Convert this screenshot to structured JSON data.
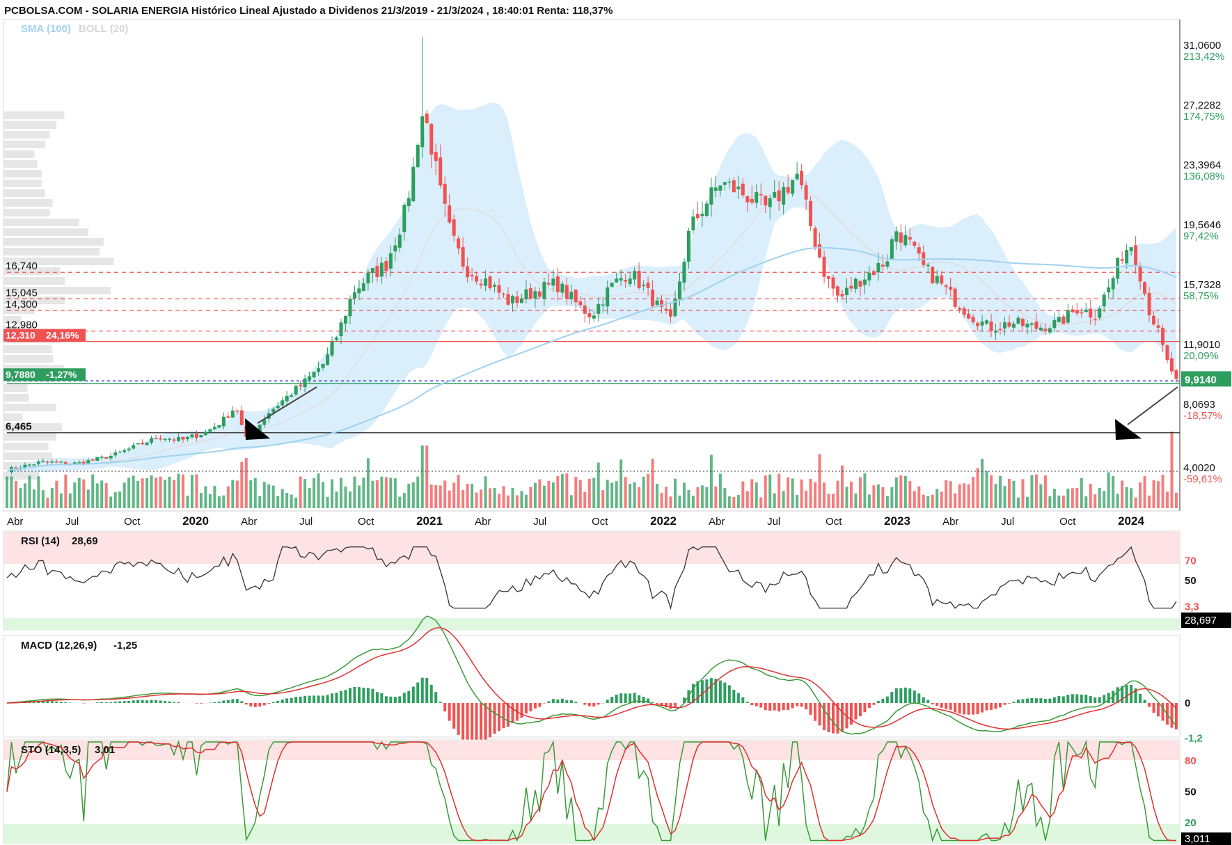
{
  "header": {
    "title": "PCBOLSA.COM - SOLARIA ENERGIA Histórico Lineal Ajustado a Dividenos 21/3/2019 - 21/3/2024 , 18:40:01 Renta: 118,37%",
    "legend_sma": "SMA (100)",
    "legend_boll": "BOLL (20)"
  },
  "colors": {
    "up": "#2e9e5f",
    "down": "#f05252",
    "boll_fill": "#d3ebfb",
    "sma": "#9fd2f0",
    "overbought": "#fde3e3",
    "oversold": "#dff7df",
    "last_price_bg": "#2e9e5f",
    "support_label_bg": "#f05252"
  },
  "price_axis": {
    "labels": [
      {
        "price": 31.06,
        "text": "31,0600",
        "pct": "213,42%",
        "pct_color": "#2e9e5f"
      },
      {
        "price": 27.2282,
        "text": "27,2282",
        "pct": "174,75%",
        "pct_color": "#2e9e5f"
      },
      {
        "price": 23.3964,
        "text": "23,3964",
        "pct": "136,08%",
        "pct_color": "#2e9e5f"
      },
      {
        "price": 19.5646,
        "text": "19,5646",
        "pct": "97,42%",
        "pct_color": "#2e9e5f"
      },
      {
        "price": 15.7328,
        "text": "15,7328",
        "pct": "58,75%",
        "pct_color": "#2e9e5f"
      },
      {
        "price": 11.901,
        "text": "11,9010",
        "pct": "20,09%",
        "pct_color": "#2e9e5f"
      },
      {
        "price": 8.0693,
        "text": "8,0693",
        "pct": "-18,57%",
        "pct_color": "#f05252"
      },
      {
        "price": 4.002,
        "text": "4,0020",
        "pct": "-59,61%",
        "pct_color": "#f05252"
      }
    ],
    "last_price": 9.914,
    "last_price_text": "9,9140"
  },
  "levels": [
    {
      "price": 16.74,
      "text": "16,740",
      "style": "dashed-red"
    },
    {
      "price": 15.045,
      "text": "15,045",
      "style": "dashed-red"
    },
    {
      "price": 14.3,
      "text": "14,300",
      "style": "dashed-red"
    },
    {
      "price": 12.98,
      "text": "12,980",
      "style": "dashed-red"
    },
    {
      "price": 12.31,
      "text": "12,310",
      "badge": "24,16%",
      "style": "solid-red"
    },
    {
      "price": 9.788,
      "text": "9,7880",
      "badge": "-1,27%",
      "style": "solid-green"
    },
    {
      "price": 6.465,
      "text": "6,465",
      "style": "solid-black"
    }
  ],
  "time_axis": {
    "labels": [
      {
        "t": 0.03,
        "text": "Abr",
        "bold": false
      },
      {
        "t": 0.28,
        "text": "Jul",
        "bold": false
      },
      {
        "t": 0.53,
        "text": "Oct",
        "bold": false
      },
      {
        "t": 0.78,
        "text": "2020",
        "bold": true
      },
      {
        "t": 1.03,
        "text": "Abr",
        "bold": false
      },
      {
        "t": 1.28,
        "text": "Jul",
        "bold": false
      },
      {
        "t": 1.53,
        "text": "Oct",
        "bold": false
      },
      {
        "t": 1.78,
        "text": "2021",
        "bold": true
      },
      {
        "t": 2.03,
        "text": "Abr",
        "bold": false
      },
      {
        "t": 2.28,
        "text": "Jul",
        "bold": false
      },
      {
        "t": 2.53,
        "text": "Oct",
        "bold": false
      },
      {
        "t": 2.78,
        "text": "2022",
        "bold": true
      },
      {
        "t": 3.03,
        "text": "Abr",
        "bold": false
      },
      {
        "t": 3.28,
        "text": "Jul",
        "bold": false
      },
      {
        "t": 3.53,
        "text": "Oct",
        "bold": false
      },
      {
        "t": 3.78,
        "text": "2023",
        "bold": true
      },
      {
        "t": 4.03,
        "text": "Abr",
        "bold": false
      },
      {
        "t": 4.28,
        "text": "Jul",
        "bold": false
      },
      {
        "t": 4.53,
        "text": "Oct",
        "bold": false
      },
      {
        "t": 4.78,
        "text": "2024",
        "bold": true
      }
    ]
  },
  "rsi": {
    "label": "RSI (14)",
    "value": "28,69",
    "badge": "28,697",
    "ticks": [
      "70",
      "50"
    ],
    "tick_values": [
      70,
      50
    ]
  },
  "macd": {
    "label": "MACD (12,26,9)",
    "value": "-1,25",
    "ticks": [
      "3,3",
      "0",
      "-1,2"
    ],
    "tick_values": [
      3.3,
      0,
      -1.2
    ]
  },
  "sto": {
    "label": "STO (14,3,5)",
    "value": "3,01",
    "badge": "3,011",
    "ticks": [
      "80",
      "50",
      "20"
    ],
    "tick_values": [
      80,
      50,
      20
    ]
  },
  "chart_data": {
    "type": "candlestick",
    "title": "PCBOLSA.COM - SOLARIA ENERGIA Histórico Lineal Ajustado a Dividenos 21/3/2019 - 21/3/2024 , 18:40:01 Renta: 118,37%",
    "period": "weekly",
    "x_range_years": [
      0,
      5
    ],
    "price_range": [
      2.5,
      32.5
    ],
    "close_keypoints": [
      [
        0.0,
        4.1
      ],
      [
        0.15,
        4.6
      ],
      [
        0.3,
        4.5
      ],
      [
        0.45,
        5.0
      ],
      [
        0.55,
        5.6
      ],
      [
        0.65,
        6.2
      ],
      [
        0.75,
        6.0
      ],
      [
        0.85,
        6.5
      ],
      [
        0.92,
        7.2
      ],
      [
        0.98,
        8.2
      ],
      [
        1.02,
        6.0
      ],
      [
        1.06,
        6.6
      ],
      [
        1.12,
        7.8
      ],
      [
        1.2,
        8.8
      ],
      [
        1.28,
        9.8
      ],
      [
        1.36,
        11.0
      ],
      [
        1.42,
        13.0
      ],
      [
        1.48,
        15.5
      ],
      [
        1.55,
        16.5
      ],
      [
        1.62,
        17.2
      ],
      [
        1.7,
        20.5
      ],
      [
        1.74,
        23.5
      ],
      [
        1.77,
        27.0
      ],
      [
        1.8,
        26.0
      ],
      [
        1.85,
        22.0
      ],
      [
        1.9,
        19.0
      ],
      [
        1.96,
        17.0
      ],
      [
        2.05,
        16.2
      ],
      [
        2.15,
        14.8
      ],
      [
        2.25,
        15.5
      ],
      [
        2.35,
        16.0
      ],
      [
        2.45,
        14.5
      ],
      [
        2.5,
        14.0
      ],
      [
        2.58,
        15.8
      ],
      [
        2.66,
        16.8
      ],
      [
        2.72,
        15.8
      ],
      [
        2.8,
        14.2
      ],
      [
        2.84,
        13.5
      ],
      [
        2.88,
        16.5
      ],
      [
        2.92,
        19.5
      ],
      [
        2.98,
        21.0
      ],
      [
        3.05,
        22.5
      ],
      [
        3.12,
        22.0
      ],
      [
        3.18,
        21.5
      ],
      [
        3.25,
        20.8
      ],
      [
        3.32,
        22.0
      ],
      [
        3.38,
        23.0
      ],
      [
        3.44,
        19.5
      ],
      [
        3.5,
        16.5
      ],
      [
        3.56,
        15.0
      ],
      [
        3.62,
        16.0
      ],
      [
        3.7,
        16.8
      ],
      [
        3.76,
        17.5
      ],
      [
        3.8,
        19.5
      ],
      [
        3.86,
        18.5
      ],
      [
        3.92,
        17.0
      ],
      [
        3.98,
        16.2
      ],
      [
        4.05,
        15.0
      ],
      [
        4.12,
        14.0
      ],
      [
        4.2,
        13.2
      ],
      [
        4.3,
        13.5
      ],
      [
        4.4,
        13.2
      ],
      [
        4.5,
        13.5
      ],
      [
        4.58,
        14.5
      ],
      [
        4.65,
        14.0
      ],
      [
        4.72,
        16.0
      ],
      [
        4.77,
        18.0
      ],
      [
        4.81,
        18.6
      ],
      [
        4.84,
        17.0
      ],
      [
        4.88,
        14.5
      ],
      [
        4.92,
        13.0
      ],
      [
        4.96,
        11.0
      ],
      [
        5.0,
        9.914
      ]
    ]
  }
}
